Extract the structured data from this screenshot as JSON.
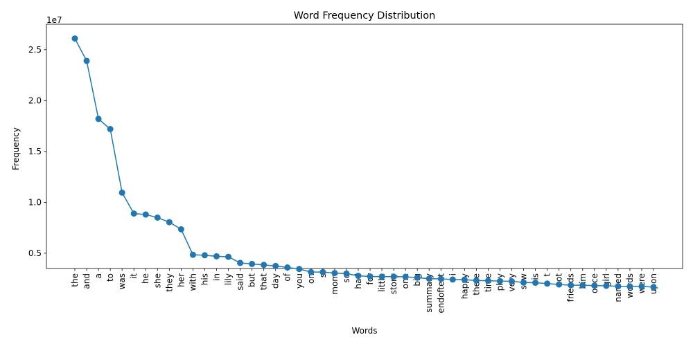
{
  "chart_data": {
    "type": "line",
    "title": "Word Frequency Distribution",
    "xlabel": "Words",
    "ylabel": "Frequency",
    "y_multiplier_label": "1e7",
    "ylim": [
      0.35,
      2.75
    ],
    "yticks": [
      0.5,
      1.0,
      1.5,
      2.0,
      2.5
    ],
    "ytick_labels": [
      "0.5",
      "1.0",
      "1.5",
      "2.0",
      "2.5"
    ],
    "grid": false,
    "marker": "circle",
    "color": "#1f77b4",
    "categories": [
      "the",
      "and",
      "a",
      "to",
      "was",
      "it",
      "he",
      "she",
      "they",
      "her",
      "with",
      "his",
      "in",
      "lily",
      "said",
      "but",
      "that",
      "day",
      "of",
      "you",
      "on",
      "s",
      "mom",
      "so",
      "had",
      "for",
      "little",
      "story",
      "one",
      "big",
      "summary",
      "endoftext",
      "i",
      "happy",
      "there",
      "time",
      "play",
      "very",
      "saw",
      "is",
      "t",
      "not",
      "friends",
      "him",
      "once",
      "girl",
      "named",
      "words",
      "were",
      "upon"
    ],
    "values": [
      2.61,
      2.39,
      1.82,
      1.72,
      1.095,
      0.89,
      0.88,
      0.85,
      0.805,
      0.735,
      0.485,
      0.48,
      0.47,
      0.465,
      0.405,
      0.395,
      0.385,
      0.375,
      0.36,
      0.345,
      0.315,
      0.315,
      0.305,
      0.3,
      0.278,
      0.272,
      0.27,
      0.27,
      0.268,
      0.26,
      0.25,
      0.248,
      0.242,
      0.24,
      0.232,
      0.23,
      0.226,
      0.224,
      0.212,
      0.21,
      0.202,
      0.193,
      0.186,
      0.186,
      0.182,
      0.18,
      0.175,
      0.174,
      0.174,
      0.167
    ]
  }
}
